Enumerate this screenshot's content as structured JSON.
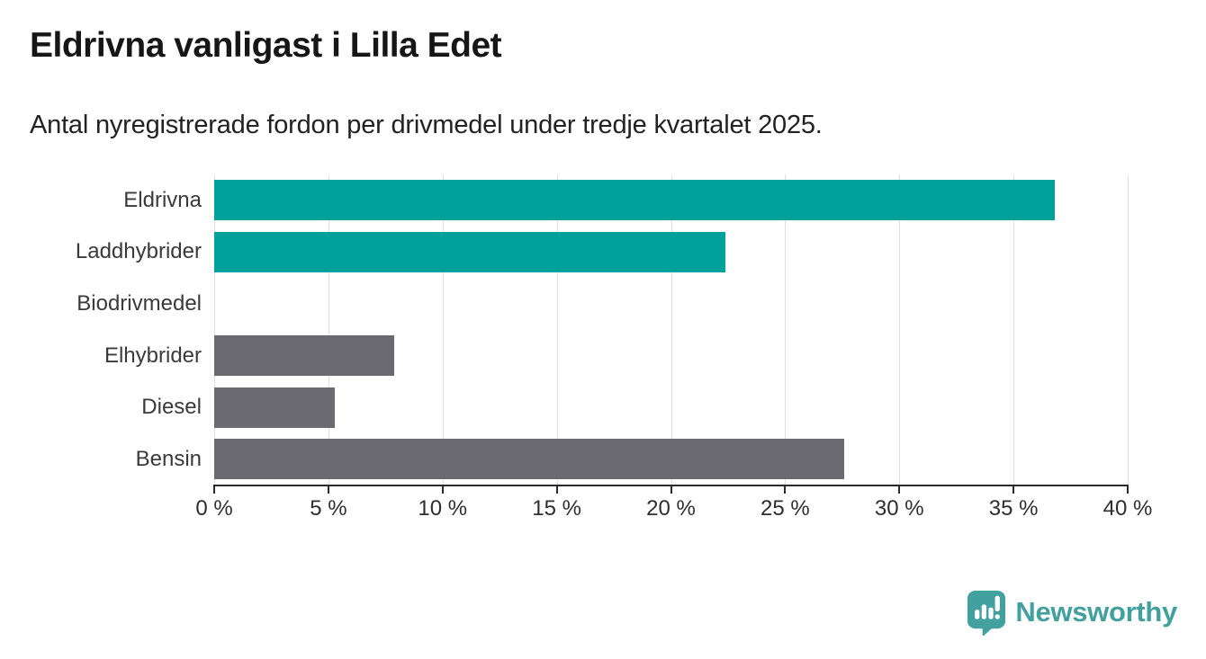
{
  "header": {
    "title": "Eldrivna vanligast i Lilla Edet",
    "subtitle": "Antal nyregistrerade fordon per drivmedel under tredje kvartalet 2025."
  },
  "chart_data": {
    "type": "bar",
    "orientation": "horizontal",
    "title": "Eldrivna vanligast i Lilla Edet",
    "subtitle": "Antal nyregistrerade fordon per drivmedel under tredje kvartalet 2025.",
    "categories": [
      "Eldrivna",
      "Laddhybrider",
      "Biodrivmedel",
      "Elhybrider",
      "Diesel",
      "Bensin"
    ],
    "values": [
      36.8,
      22.4,
      0,
      7.9,
      5.3,
      27.6
    ],
    "unit": "%",
    "bar_colors": [
      "#00a19a",
      "#00a19a",
      "#6a6a70",
      "#6a6a70",
      "#6a6a70",
      "#6a6a70"
    ],
    "accent_teal": "#00a19a",
    "neutral_gray": "#6a6a70",
    "xlim": [
      0,
      40
    ],
    "x_tick_step": 5,
    "x_tick_labels": [
      "0 %",
      "5 %",
      "10 %",
      "15 %",
      "20 %",
      "25 %",
      "30 %",
      "35 %",
      "40 %"
    ],
    "grid": "vertical-gridlines-on",
    "legend": "none"
  },
  "branding": {
    "logo_text": "Newsworthy",
    "logo_color": "#42a09e",
    "logo_icon": "speech-bubble-bar-chart"
  }
}
